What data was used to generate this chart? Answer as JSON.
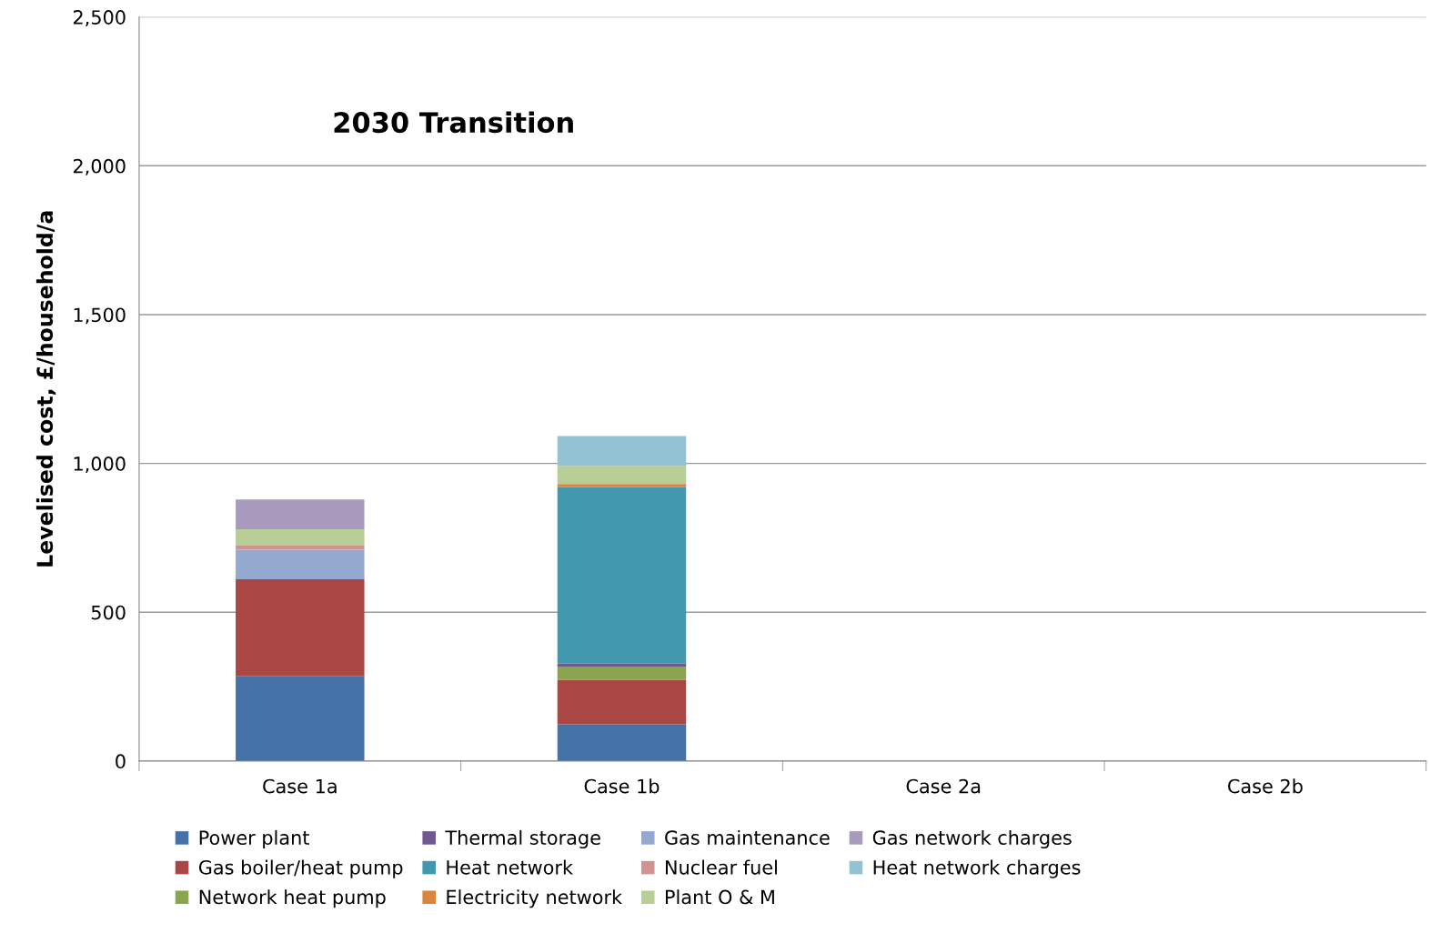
{
  "chart_data": {
    "type": "bar",
    "stacked": true,
    "title": "2030 Transition",
    "ylabel": "Levelised cost, £/household/a",
    "categories": [
      "Case 1a",
      "Case 1b",
      "Case 2a",
      "Case 2b"
    ],
    "series": [
      {
        "name": "Power plant",
        "color": "#4572a7",
        "values": [
          286,
          123,
          null,
          null
        ]
      },
      {
        "name": "Gas boiler/heat pump",
        "color": "#aa4643",
        "values": [
          325,
          149,
          null,
          null
        ]
      },
      {
        "name": "Network heat pump",
        "color": "#89a54e",
        "values": [
          null,
          45,
          null,
          null
        ]
      },
      {
        "name": "Thermal storage",
        "color": "#71588f",
        "values": [
          null,
          10,
          null,
          null
        ]
      },
      {
        "name": "Heat network",
        "color": "#4198af",
        "values": [
          null,
          594,
          null,
          null
        ]
      },
      {
        "name": "Electricity network",
        "color": "#db843d",
        "values": [
          null,
          10,
          null,
          null
        ]
      },
      {
        "name": "Gas maintenance",
        "color": "#93a9cf",
        "values": [
          99,
          null,
          null,
          null
        ]
      },
      {
        "name": "Nuclear fuel",
        "color": "#d19392",
        "values": [
          14,
          null,
          null,
          null
        ]
      },
      {
        "name": "Plant O & M",
        "color": "#b9cd96",
        "values": [
          55,
          61,
          null,
          null
        ]
      },
      {
        "name": "Gas network charges",
        "color": "#a99bbd",
        "values": [
          100,
          null,
          null,
          null
        ]
      },
      {
        "name": "Heat network charges",
        "color": "#92c3d5",
        "values": [
          null,
          100,
          null,
          null
        ]
      }
    ],
    "ylim": [
      0,
      2500
    ],
    "yticks": [
      0,
      500,
      {
        "value": 1000,
        "label": "1,000"
      },
      {
        "value": 1500,
        "label": "1,500"
      },
      {
        "value": 2000,
        "label": "2,000"
      },
      {
        "value": 2500,
        "label": "2,500"
      }
    ],
    "grid": "y",
    "legend": "bottom"
  }
}
